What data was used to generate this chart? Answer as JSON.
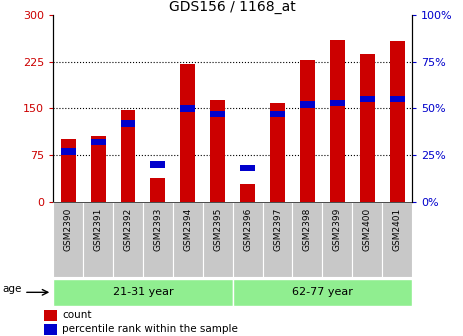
{
  "title": "GDS156 / 1168_at",
  "samples": [
    "GSM2390",
    "GSM2391",
    "GSM2392",
    "GSM2393",
    "GSM2394",
    "GSM2395",
    "GSM2396",
    "GSM2397",
    "GSM2398",
    "GSM2399",
    "GSM2400",
    "GSM2401"
  ],
  "counts": [
    100,
    105,
    147,
    38,
    222,
    163,
    28,
    158,
    228,
    260,
    237,
    258
  ],
  "percentiles": [
    27,
    32,
    42,
    20,
    50,
    47,
    18,
    47,
    52,
    53,
    55,
    55
  ],
  "groups": [
    {
      "label": "21-31 year",
      "start": 0,
      "end": 5
    },
    {
      "label": "62-77 year",
      "start": 6,
      "end": 11
    }
  ],
  "ylim_left": [
    0,
    300
  ],
  "ylim_right": [
    0,
    100
  ],
  "yticks_left": [
    0,
    75,
    150,
    225,
    300
  ],
  "yticks_right": [
    0,
    25,
    50,
    75,
    100
  ],
  "bar_color": "#CC0000",
  "dot_color": "#0000CC",
  "grid_color": "#000000",
  "title_color": "#000000",
  "left_axis_color": "#CC0000",
  "right_axis_color": "#0000CC",
  "group_bg_color": "#90EE90",
  "sample_bg_color": "#C8C8C8",
  "bar_width": 0.5,
  "figsize": [
    4.63,
    3.36
  ],
  "dpi": 100
}
